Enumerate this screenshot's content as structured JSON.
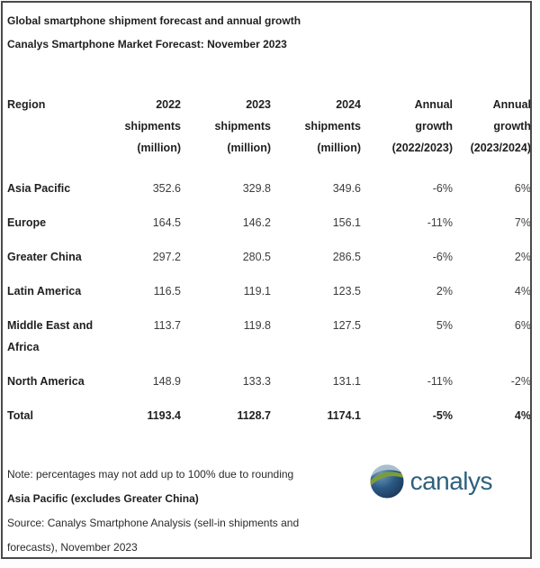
{
  "header": {
    "title": "Global smartphone shipment forecast and annual growth",
    "subtitle": "Canalys Smartphone Market Forecast: November 2023"
  },
  "table": {
    "columns": [
      {
        "key": "region",
        "lines": [
          "Region"
        ]
      },
      {
        "key": "shipments-2022",
        "lines": [
          "2022",
          "shipments",
          "(million)"
        ]
      },
      {
        "key": "shipments-2023",
        "lines": [
          "2023",
          "shipments",
          "(million)"
        ]
      },
      {
        "key": "shipments-2024",
        "lines": [
          "2024",
          "shipments",
          "(million)"
        ]
      },
      {
        "key": "annual-growth-2022-2023",
        "lines": [
          "Annual",
          "growth",
          "(2022/2023)"
        ]
      },
      {
        "key": "annual-growth-2023-2024",
        "lines": [
          "Annual",
          "growth",
          "(2023/2024)"
        ]
      }
    ],
    "rows": [
      {
        "region": "Asia Pacific",
        "values": [
          "352.6",
          "329.8",
          "349.6",
          "-6%",
          "6%"
        ],
        "total": false
      },
      {
        "region": "Europe",
        "values": [
          "164.5",
          "146.2",
          "156.1",
          "-11%",
          "7%"
        ],
        "total": false
      },
      {
        "region": "Greater China",
        "values": [
          "297.2",
          "280.5",
          "286.5",
          "-6%",
          "2%"
        ],
        "total": false
      },
      {
        "region": "Latin America",
        "values": [
          "116.5",
          "119.1",
          "123.5",
          "2%",
          "4%"
        ],
        "total": false
      },
      {
        "region": "Middle East and Africa",
        "values": [
          "113.7",
          "119.8",
          "127.5",
          "5%",
          "6%"
        ],
        "total": false
      },
      {
        "region": "North America",
        "values": [
          "148.9",
          "133.3",
          "131.1",
          "-11%",
          "-2%"
        ],
        "total": false
      },
      {
        "region": "Total",
        "values": [
          "1193.4",
          "1128.7",
          "1174.1",
          "-5%",
          "4%"
        ],
        "total": true
      }
    ]
  },
  "footer": {
    "note": "Note: percentages may not add up to 100% due to rounding",
    "definition": "Asia Pacific (excludes Greater China)",
    "source": "Source: Canalys Smartphone Analysis (sell-in shipments and forecasts), November 2023",
    "logo_text": "canalys"
  },
  "colors": {
    "text": "#1f1f1f",
    "value_text": "#3d3d3d",
    "card_border": "#4a4a4a",
    "logo_blue": "#2e617e",
    "logo_navy": "#16324f",
    "logo_green": "#7d9c3a",
    "background": "#ffffff"
  },
  "chart_data": {
    "type": "table",
    "title": "Global smartphone shipment forecast and annual growth",
    "subtitle": "Canalys Smartphone Market Forecast: November 2023",
    "columns": [
      "Region",
      "2022 shipments (million)",
      "2023 shipments (million)",
      "2024 shipments (million)",
      "Annual growth (2022/2023)",
      "Annual growth (2023/2024)"
    ],
    "rows": [
      [
        "Asia Pacific",
        352.6,
        329.8,
        349.6,
        "-6%",
        "6%"
      ],
      [
        "Europe",
        164.5,
        146.2,
        156.1,
        "-11%",
        "7%"
      ],
      [
        "Greater China",
        297.2,
        280.5,
        286.5,
        "-6%",
        "2%"
      ],
      [
        "Latin America",
        116.5,
        119.1,
        123.5,
        "2%",
        "4%"
      ],
      [
        "Middle East and Africa",
        113.7,
        119.8,
        127.5,
        "5%",
        "6%"
      ],
      [
        "North America",
        148.9,
        133.3,
        131.1,
        "-11%",
        "-2%"
      ],
      [
        "Total",
        1193.4,
        1128.7,
        1174.1,
        "-5%",
        "4%"
      ]
    ],
    "notes": [
      "Note: percentages may not add up to 100% due to rounding",
      "Asia Pacific (excludes Greater China)",
      "Source: Canalys Smartphone Analysis (sell-in shipments and forecasts), November 2023"
    ]
  }
}
